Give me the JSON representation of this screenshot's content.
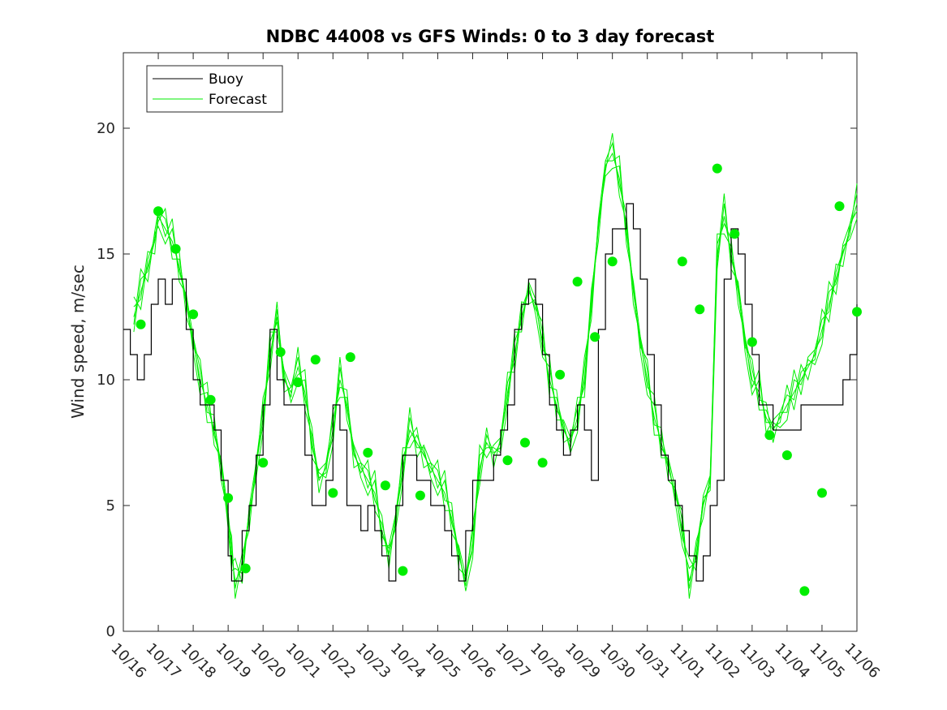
{
  "chart_data": {
    "type": "line",
    "title": "NDBC 44008 vs GFS Winds: 0 to 3 day forecast",
    "xlabel": "",
    "ylabel": "Wind speed, m/sec",
    "xlim": [
      "10/16",
      "11/06"
    ],
    "ylim": [
      0,
      23
    ],
    "x_ticks": [
      "10/16",
      "10/17",
      "10/18",
      "10/19",
      "10/20",
      "10/21",
      "10/22",
      "10/23",
      "10/24",
      "10/25",
      "10/26",
      "10/27",
      "10/28",
      "10/29",
      "10/30",
      "10/31",
      "11/01",
      "11/02",
      "11/03",
      "11/04",
      "11/05",
      "11/06"
    ],
    "y_ticks": [
      "0",
      "5",
      "10",
      "15",
      "20"
    ],
    "grid": false,
    "legend": {
      "position": "top-left",
      "entries": [
        "Buoy",
        "Forecast"
      ]
    },
    "colors": {
      "buoy": "#000000",
      "forecast": "#00ee00"
    },
    "series": [
      {
        "name": "Buoy",
        "x_days": [
          0,
          0.2,
          0.4,
          0.6,
          0.8,
          1.0,
          1.2,
          1.4,
          1.6,
          1.8,
          2.0,
          2.2,
          2.4,
          2.6,
          2.8,
          3.0,
          3.1,
          3.2,
          3.4,
          3.6,
          3.8,
          4.0,
          4.2,
          4.4,
          4.6,
          4.8,
          5.0,
          5.2,
          5.4,
          5.6,
          5.8,
          6.0,
          6.2,
          6.4,
          6.6,
          6.8,
          7.0,
          7.2,
          7.4,
          7.6,
          7.8,
          8.0,
          8.2,
          8.4,
          8.6,
          8.8,
          9.0,
          9.2,
          9.4,
          9.6,
          9.8,
          10.0,
          10.2,
          10.4,
          10.6,
          10.8,
          11.0,
          11.2,
          11.4,
          11.6,
          11.8,
          12.0,
          12.2,
          12.4,
          12.6,
          12.8,
          13.0,
          13.2,
          13.4,
          13.6,
          13.8,
          14.0,
          14.2,
          14.4,
          14.6,
          14.8,
          15.0,
          15.2,
          15.4,
          15.6,
          15.8,
          16.0,
          16.2,
          16.4,
          16.6,
          16.8,
          17.0,
          17.2,
          17.4,
          17.6,
          17.8,
          18.0,
          18.2,
          18.4,
          18.6,
          18.8,
          19.0,
          19.2,
          19.4,
          19.6,
          19.8,
          20.0,
          20.2,
          20.4,
          20.6,
          20.8,
          21.0
        ],
        "values": [
          12,
          11,
          10,
          11,
          13,
          14,
          13,
          14,
          14,
          12,
          10,
          9,
          9,
          8,
          6,
          3,
          2,
          2,
          4,
          5,
          7,
          9,
          12,
          10,
          9,
          9,
          9,
          7,
          5,
          5,
          6,
          9,
          8,
          5,
          5,
          4,
          5,
          4,
          3,
          2,
          5,
          7,
          7,
          6,
          6,
          5,
          5,
          4,
          3,
          2,
          4,
          6,
          6,
          6,
          7,
          8,
          9,
          12,
          13,
          14,
          13,
          11,
          9,
          8,
          7,
          8,
          9,
          8,
          6,
          12,
          15,
          16,
          16,
          17,
          16,
          14,
          11,
          9,
          7,
          6,
          5,
          4,
          3,
          2,
          3,
          5,
          6,
          14,
          16,
          15,
          13,
          11,
          9,
          9,
          8,
          8,
          8,
          8,
          9,
          9,
          9,
          9,
          9,
          9,
          10,
          11,
          13
        ]
      },
      {
        "name": "Forecast",
        "x_days": [
          0.3,
          0.5,
          0.7,
          0.9,
          1.0,
          1.2,
          1.4,
          1.6,
          1.8,
          2.0,
          2.2,
          2.4,
          2.6,
          2.8,
          3.0,
          3.1,
          3.2,
          3.4,
          3.6,
          3.8,
          4.0,
          4.2,
          4.4,
          4.6,
          4.8,
          5.0,
          5.2,
          5.4,
          5.6,
          5.8,
          6.0,
          6.2,
          6.4,
          6.6,
          6.8,
          7.0,
          7.2,
          7.4,
          7.6,
          7.8,
          8.0,
          8.2,
          8.4,
          8.6,
          8.8,
          9.0,
          9.2,
          9.4,
          9.6,
          9.8,
          10.0,
          10.2,
          10.4,
          10.6,
          10.8,
          11.0,
          11.2,
          11.4,
          11.6,
          11.8,
          12.0,
          12.2,
          12.4,
          12.6,
          12.8,
          13.0,
          13.2,
          13.4,
          13.6,
          13.8,
          14.0,
          14.2,
          14.4,
          14.6,
          14.8,
          15.0,
          15.2,
          15.4,
          15.6,
          15.8,
          16.0,
          16.2,
          16.4,
          16.6,
          16.8,
          17.0,
          17.2,
          17.4,
          17.6,
          17.8,
          18.0,
          18.2,
          18.4,
          18.6,
          18.8,
          19.0,
          19.2,
          19.4,
          19.6,
          19.8,
          20.0,
          20.2,
          20.4,
          20.6,
          20.8,
          21.0
        ],
        "values": [
          12.5,
          13.5,
          14.5,
          15.5,
          16.5,
          16.0,
          15.5,
          14.5,
          13.0,
          11.5,
          10.0,
          9.0,
          8.0,
          6.5,
          4.5,
          3.0,
          2.0,
          2.5,
          4.5,
          6.5,
          8.5,
          11.0,
          12.5,
          10.0,
          9.5,
          10.5,
          9.5,
          7.5,
          6.0,
          6.5,
          8.0,
          10.0,
          9.0,
          7.0,
          6.5,
          6.0,
          5.5,
          4.0,
          3.0,
          4.5,
          6.5,
          8.0,
          7.5,
          7.0,
          6.5,
          6.0,
          5.5,
          4.5,
          3.0,
          2.0,
          3.5,
          6.5,
          7.5,
          7.0,
          7.5,
          9.5,
          11.0,
          12.5,
          13.5,
          13.0,
          11.5,
          10.0,
          9.0,
          8.0,
          7.5,
          8.5,
          10.0,
          13.0,
          16.0,
          18.5,
          19.0,
          18.0,
          16.0,
          13.5,
          11.5,
          10.0,
          8.5,
          7.5,
          6.5,
          5.5,
          4.0,
          2.0,
          3.0,
          5.0,
          6.0,
          15.0,
          16.5,
          15.0,
          13.5,
          11.5,
          10.0,
          9.5,
          8.5,
          8.0,
          8.5,
          9.0,
          9.5,
          10.0,
          10.5,
          11.0,
          12.0,
          13.0,
          14.0,
          15.0,
          16.0,
          17.0
        ]
      },
      {
        "name": "",
        "x_days": [
          0.5,
          1.0,
          1.5,
          2.0,
          2.5,
          3.0,
          3.5,
          4.0,
          4.5,
          5.0,
          5.5,
          6.0,
          6.5,
          7.0,
          7.5,
          8.0,
          8.5,
          9.0,
          9.5,
          10.0,
          10.5,
          11.0,
          11.5,
          12.0,
          12.5,
          13.0,
          13.5,
          14.0,
          14.5,
          15.0,
          15.5,
          16.0,
          16.5,
          17.0,
          17.5,
          18.0,
          18.5,
          19.0,
          19.5,
          20.0
        ],
        "values": [
          12.2,
          16.7,
          15.2,
          12.6,
          9.2,
          5.3,
          2.5,
          6.7,
          11.1,
          9.9,
          10.8,
          5.5,
          10.9,
          7.1,
          5.8,
          2.4,
          5.4,
          6.8,
          7.5,
          6.7,
          10.2,
          13.9,
          11.7,
          14.7,
          12.8,
          18.4,
          15.8,
          11.5,
          7.8,
          7.0,
          1.6,
          5.5,
          16.9,
          12.7,
          14.7,
          18.4,
          15.8,
          11.5,
          7.8,
          7.0
        ]
      }
    ],
    "markers_x_days": [
      0.5,
      1.0,
      1.5,
      2.0,
      2.5,
      3.0,
      3.5,
      4.0,
      4.5,
      5.0,
      5.5,
      6.0,
      6.5,
      7.0,
      7.5,
      8.0,
      8.5,
      11.0,
      11.5,
      12.0,
      12.5,
      13.0,
      13.5,
      14.0,
      16.0,
      16.5,
      17.0,
      17.5,
      18.0,
      18.5,
      19.0,
      19.5,
      20.0,
      20.5,
      21.0
    ],
    "markers_values": [
      12.2,
      16.7,
      15.2,
      12.6,
      9.2,
      5.3,
      2.5,
      6.7,
      11.1,
      9.9,
      10.8,
      5.5,
      10.9,
      7.1,
      5.8,
      2.4,
      5.4,
      6.8,
      7.5,
      6.7,
      10.2,
      13.9,
      11.7,
      14.7,
      14.7,
      12.8,
      18.4,
      15.8,
      11.5,
      7.8,
      7.0,
      1.6,
      5.5,
      16.9,
      12.7
    ]
  }
}
